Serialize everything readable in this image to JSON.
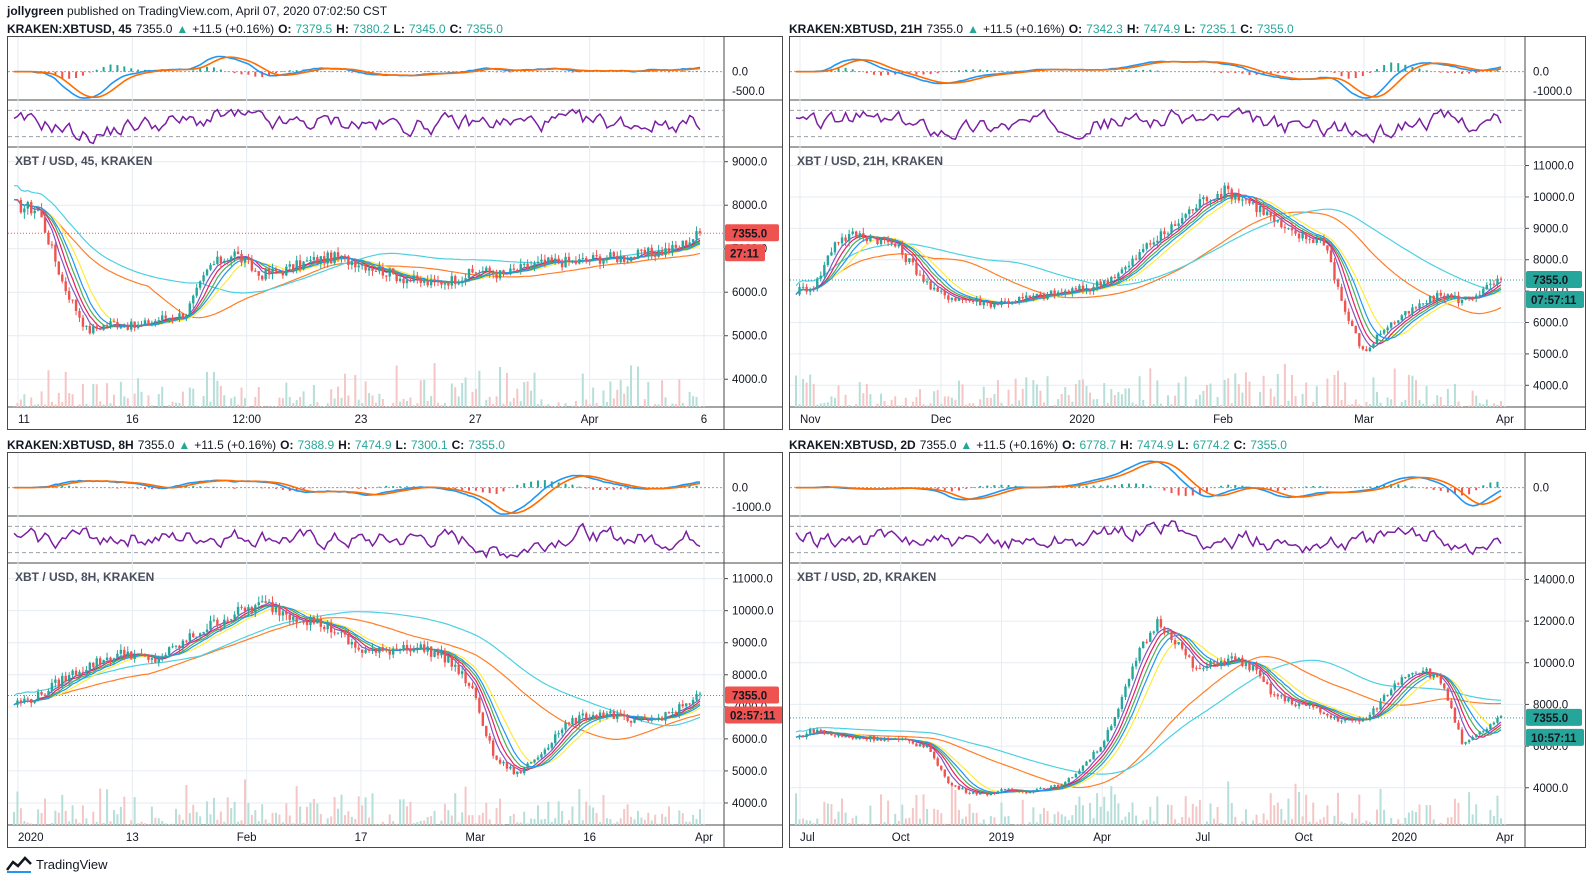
{
  "header": {
    "author": "jollygreen",
    "published": "published on TradingView.com, April 07, 2020 07:02:50 CST"
  },
  "footer": {
    "brand": "TradingView"
  },
  "colors": {
    "up": "#26a69a",
    "down": "#ef5350",
    "macd": "#2196f3",
    "signal": "#ff6d00",
    "rsi": "#7b1fa2",
    "ma_yellow": "#ffeb3b",
    "ma_orange": "#ff7f2a",
    "ma_cyan": "#4dd0e1"
  },
  "panels": [
    {
      "symbol": "KRAKEN:XBTUSD, 45",
      "price": "7355.0",
      "change": "+11.5 (+0.16%)",
      "o_label": "O:",
      "o": "7379.5",
      "h_label": "H:",
      "h": "7380.2",
      "l_label": "L:",
      "l": "7345.0",
      "c_label": "C:",
      "c": "7355.0",
      "main_label": "XBT / USD, 45, KRAKEN",
      "price_ticks": [
        "9000.0",
        "8000.0",
        "7000.0",
        "6000.0",
        "5000.0",
        "4000.0"
      ],
      "macd_ticks": [
        "0.0",
        "-500.0"
      ],
      "time_ticks": [
        "11",
        "16",
        "12:00",
        "23",
        "27",
        "Apr",
        "6"
      ],
      "price_tag": "7355.0",
      "countdown": "27:11",
      "dotted": "#ef5350"
    },
    {
      "symbol": "KRAKEN:XBTUSD, 21H",
      "price": "7355.0",
      "change": "+11.5 (+0.16%)",
      "o_label": "O:",
      "o": "7342.3",
      "h_label": "H:",
      "h": "7474.9",
      "l_label": "L:",
      "l": "7235.1",
      "c_label": "C:",
      "c": "7355.0",
      "main_label": "XBT / USD, 21H, KRAKEN",
      "price_ticks": [
        "11000.0",
        "10000.0",
        "9000.0",
        "8000.0",
        "7000.0",
        "6000.0",
        "5000.0",
        "4000.0"
      ],
      "macd_ticks": [
        "0.0",
        "-1000.0"
      ],
      "time_ticks": [
        "Nov",
        "Dec",
        "2020",
        "Feb",
        "Mar",
        "Apr"
      ],
      "price_tag": "7355.0",
      "countdown": "07:57:11",
      "dotted": "#26a69a"
    },
    {
      "symbol": "KRAKEN:XBTUSD, 8H",
      "price": "7355.0",
      "change": "+11.5 (+0.16%)",
      "o_label": "O:",
      "o": "7388.9",
      "h_label": "H:",
      "h": "7474.9",
      "l_label": "L:",
      "l": "7300.1",
      "c_label": "C:",
      "c": "7355.0",
      "main_label": "XBT / USD, 8H, KRAKEN",
      "price_ticks": [
        "11000.0",
        "10000.0",
        "9000.0",
        "8000.0",
        "7000.0",
        "6000.0",
        "5000.0",
        "4000.0"
      ],
      "macd_ticks": [
        "0.0",
        "-1000.0"
      ],
      "time_ticks": [
        "2020",
        "13",
        "Feb",
        "17",
        "Mar",
        "16",
        "Apr"
      ],
      "price_tag": "7355.0",
      "countdown": "02:57:11",
      "dotted": "#ef5350"
    },
    {
      "symbol": "KRAKEN:XBTUSD, 2D",
      "price": "7355.0",
      "change": "+11.5 (+0.16%)",
      "o_label": "O:",
      "o": "6778.7",
      "h_label": "H:",
      "h": "7474.9",
      "l_label": "L:",
      "l": "6774.2",
      "c_label": "C:",
      "c": "7355.0",
      "main_label": "XBT / USD, 2D, KRAKEN",
      "price_ticks": [
        "14000.0",
        "12000.0",
        "10000.0",
        "8000.0",
        "6000.0",
        "4000.0"
      ],
      "macd_ticks": [
        "0.0"
      ],
      "time_ticks": [
        "Jul",
        "Oct",
        "2019",
        "Apr",
        "Jul",
        "Oct",
        "2020",
        "Apr"
      ],
      "price_tag": "7355.0",
      "countdown": "10:57:11",
      "dotted": "#26a69a"
    }
  ]
}
